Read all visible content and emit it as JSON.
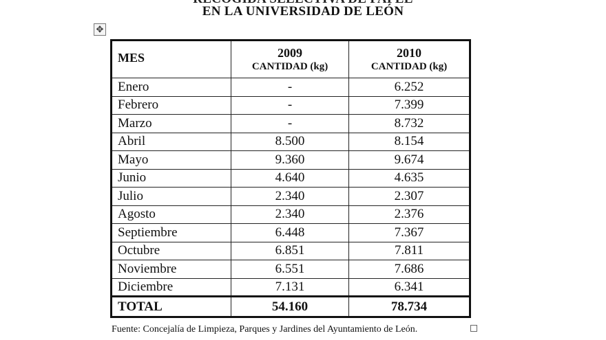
{
  "heading": {
    "line1": "RECOGIDA SELECTIVA DE PAPEL",
    "line2": "EN LA UNIVERSIDAD DE LEÓN"
  },
  "table": {
    "headers": {
      "month": "MES",
      "year1": "2009",
      "year2": "2010",
      "unit": "CANTIDAD (kg)"
    },
    "rows": [
      {
        "mes": "Enero",
        "y2009": "-",
        "y2010": "6.252"
      },
      {
        "mes": "Febrero",
        "y2009": "-",
        "y2010": "7.399"
      },
      {
        "mes": "Marzo",
        "y2009": "-",
        "y2010": "8.732"
      },
      {
        "mes": "Abril",
        "y2009": "8.500",
        "y2010": "8.154"
      },
      {
        "mes": "Mayo",
        "y2009": "9.360",
        "y2010": "9.674"
      },
      {
        "mes": "Junio",
        "y2009": "4.640",
        "y2010": "4.635"
      },
      {
        "mes": "Julio",
        "y2009": "2.340",
        "y2010": "2.307"
      },
      {
        "mes": "Agosto",
        "y2009": "2.340",
        "y2010": "2.376"
      },
      {
        "mes": "Septiembre",
        "y2009": "6.448",
        "y2010": "7.367"
      },
      {
        "mes": "Octubre",
        "y2009": "6.851",
        "y2010": "7.811"
      },
      {
        "mes": "Noviembre",
        "y2009": "6.551",
        "y2010": "7.686"
      },
      {
        "mes": "Diciembre",
        "y2009": "7.131",
        "y2010": "6.341"
      }
    ],
    "total": {
      "label": "TOTAL",
      "y2009": "54.160",
      "y2010": "78.734"
    }
  },
  "footnote": "Fuente: Concejalía de Limpieza, Parques y Jardines del Ayuntamiento de León.",
  "icons": {
    "move_handle": "move-arrows-icon",
    "end_marker": "table-end-marker-icon"
  }
}
